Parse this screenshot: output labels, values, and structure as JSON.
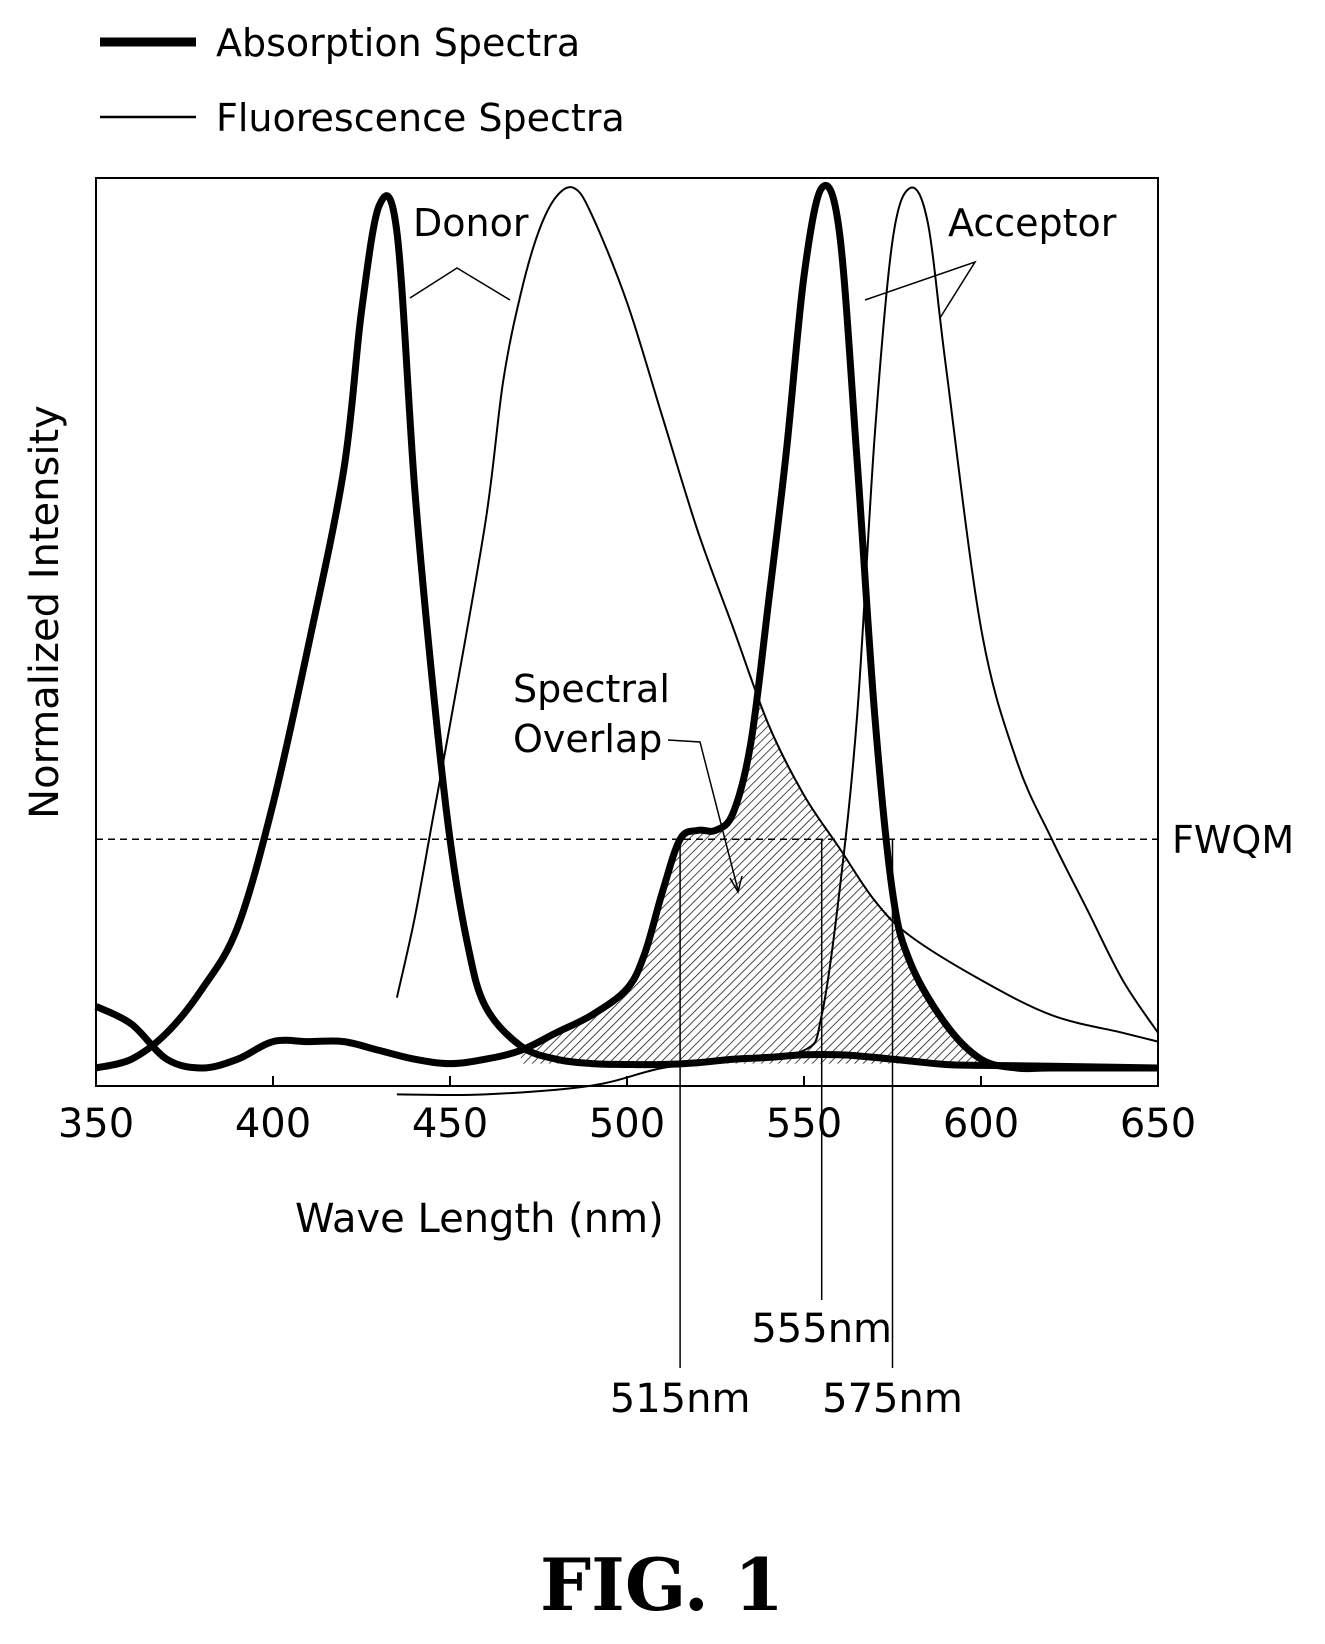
{
  "legend": {
    "absorption_label": "Absorption Spectra",
    "fluorescence_label": "Fluorescence Spectra"
  },
  "figure_label": "FIG. 1",
  "chart_data": {
    "type": "line",
    "xlabel": "Wave Length (nm)",
    "ylabel": "Normalized Intensity",
    "xlim": [
      350,
      650
    ],
    "ylim": [
      0,
      1
    ],
    "xticks": [
      350,
      400,
      450,
      500,
      550,
      600,
      650
    ],
    "grid": false,
    "legend_position": "top-left",
    "fwqm_level": 0.26,
    "fwqm_label": "FWQM",
    "markers": [
      {
        "x": 515,
        "label": "515nm"
      },
      {
        "x": 555,
        "label": "555nm"
      },
      {
        "x": 575,
        "label": "575nm"
      }
    ],
    "annotations": {
      "donor": "Donor",
      "acceptor": "Acceptor",
      "overlap_line1": "Spectral",
      "overlap_line2": "Overlap"
    },
    "series": {
      "donor_absorption": {
        "x": [
          350,
          360,
          370,
          380,
          390,
          400,
          410,
          420,
          425,
          430,
          435,
          440,
          445,
          450,
          455,
          460,
          470,
          480,
          490,
          500,
          510,
          520,
          530,
          540,
          550,
          560,
          570,
          580,
          590,
          600,
          620,
          650
        ],
        "y": [
          0.0,
          0.01,
          0.04,
          0.09,
          0.16,
          0.3,
          0.48,
          0.68,
          0.86,
          0.98,
          0.95,
          0.66,
          0.44,
          0.26,
          0.14,
          0.07,
          0.025,
          0.01,
          0.005,
          0.004,
          0.004,
          0.006,
          0.01,
          0.012,
          0.015,
          0.015,
          0.012,
          0.008,
          0.004,
          0.003,
          0.002,
          0.0
        ]
      },
      "donor_fluorescence": {
        "x": [
          435,
          440,
          445,
          450,
          460,
          465,
          470,
          475,
          480,
          485,
          490,
          500,
          510,
          520,
          530,
          540,
          550,
          560,
          570,
          580,
          600,
          620,
          640,
          650
        ],
        "y": [
          0.08,
          0.17,
          0.28,
          0.39,
          0.62,
          0.78,
          0.88,
          0.95,
          0.99,
          1.0,
          0.97,
          0.87,
          0.74,
          0.61,
          0.5,
          0.39,
          0.31,
          0.25,
          0.19,
          0.15,
          0.1,
          0.06,
          0.04,
          0.03
        ]
      },
      "acceptor_absorption": {
        "x": [
          350,
          360,
          370,
          380,
          390,
          400,
          410,
          420,
          430,
          440,
          450,
          460,
          470,
          480,
          490,
          500,
          505,
          510,
          515,
          520,
          525,
          530,
          535,
          540,
          545,
          550,
          555,
          560,
          565,
          570,
          575,
          580,
          590,
          600,
          610,
          620,
          650
        ],
        "y": [
          0.07,
          0.05,
          0.01,
          0.0,
          0.01,
          0.03,
          0.03,
          0.03,
          0.02,
          0.01,
          0.005,
          0.01,
          0.02,
          0.04,
          0.06,
          0.09,
          0.13,
          0.2,
          0.26,
          0.27,
          0.27,
          0.29,
          0.37,
          0.53,
          0.7,
          0.9,
          1.0,
          0.95,
          0.69,
          0.4,
          0.2,
          0.12,
          0.05,
          0.01,
          0.0,
          0.0,
          0.0
        ]
      },
      "acceptor_fluorescence": {
        "x": [
          435,
          460,
          490,
          510,
          530,
          550,
          555,
          560,
          565,
          570,
          575,
          580,
          585,
          590,
          600,
          610,
          620,
          630,
          640,
          650
        ],
        "y": [
          -0.03,
          -0.03,
          -0.02,
          0.0,
          0.01,
          0.02,
          0.06,
          0.2,
          0.4,
          0.72,
          0.94,
          1.0,
          0.96,
          0.8,
          0.5,
          0.35,
          0.26,
          0.18,
          0.1,
          0.04
        ]
      }
    }
  }
}
